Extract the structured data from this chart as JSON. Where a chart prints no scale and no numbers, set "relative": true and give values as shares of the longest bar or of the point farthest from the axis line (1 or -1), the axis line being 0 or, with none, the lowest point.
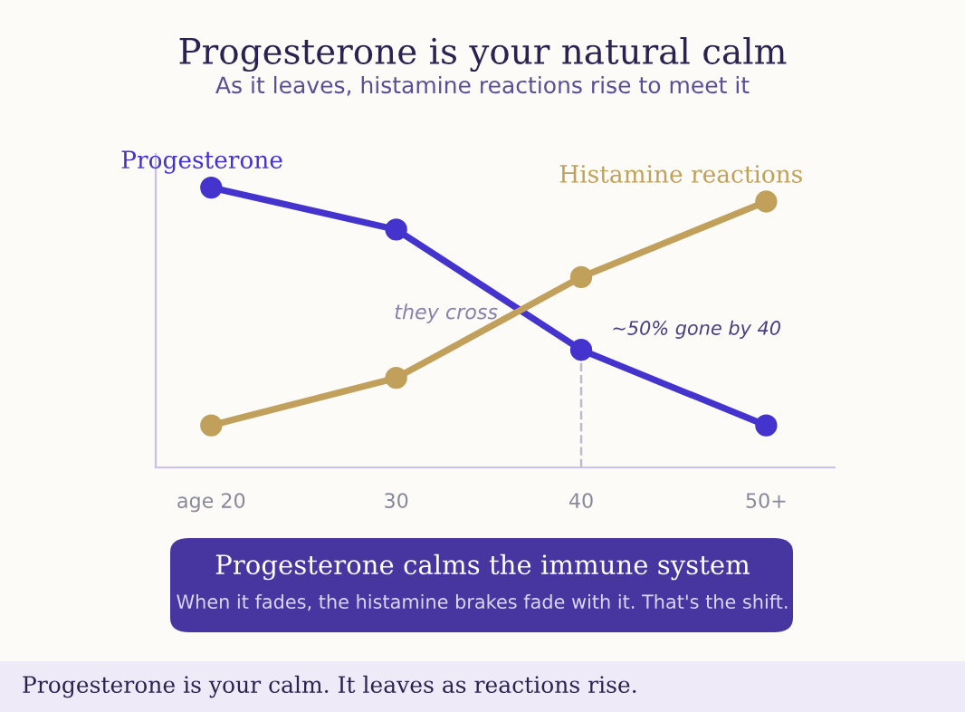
{
  "chart_data": {
    "type": "line",
    "title": "Progesterone is your natural calm",
    "subtitle": "As it leaves, histamine reactions rise to meet it",
    "categories": [
      "age 20",
      "30",
      "40",
      "50+"
    ],
    "relative": true,
    "marker": "circle",
    "line_style": "solid",
    "grid": false,
    "legend": false,
    "series": [
      {
        "name": "Progesterone",
        "color": "#4433cc",
        "values": [
          1.0,
          0.85,
          0.42,
          0.15
        ]
      },
      {
        "name": "Histamine reactions",
        "color": "#c0a05a",
        "values": [
          0.15,
          0.32,
          0.68,
          0.95
        ]
      }
    ],
    "ref_lines": [
      {
        "axis": "x",
        "value": "40",
        "color": "#bbbbcc",
        "line_style": "dashed"
      }
    ],
    "annotations": [
      {
        "text": "~50% gone by 40",
        "x": "40",
        "y": 0.42
      },
      "they cross",
      "Progesterone calms the immune system",
      "When it fades, the histamine brakes fade with it. That's the shift.",
      "Progesterone is your calm. It leaves as reactions rise."
    ]
  }
}
